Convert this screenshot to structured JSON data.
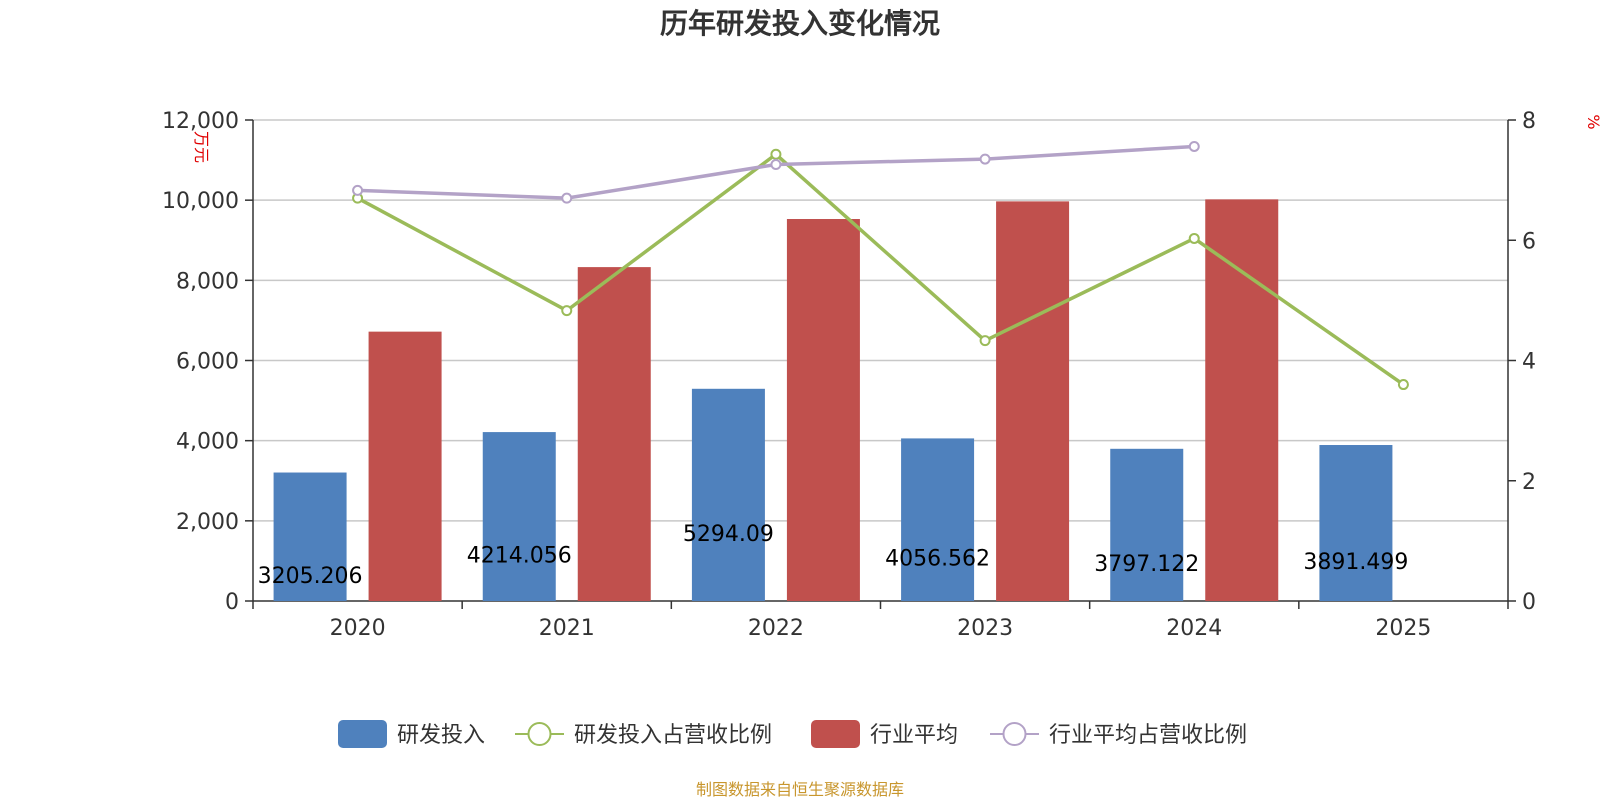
{
  "chart_data": {
    "type": "bar",
    "title": "历年研发投入变化情况",
    "categories": [
      "2020",
      "2021",
      "2022",
      "2023",
      "2024",
      "2025"
    ],
    "y_left": {
      "unit": "万元",
      "range": [
        0,
        12000
      ],
      "ticks": [
        "0",
        "2,000",
        "4,000",
        "6,000",
        "8,000",
        "10,000",
        "12,000"
      ],
      "tick_values": [
        0,
        2000,
        4000,
        6000,
        8000,
        10000,
        12000
      ]
    },
    "y_right": {
      "unit": "%",
      "range": [
        0,
        8
      ],
      "ticks": [
        "0",
        "2",
        "4",
        "6",
        "8"
      ],
      "tick_values": [
        0,
        2,
        4,
        6,
        8
      ]
    },
    "grid": true,
    "legend_position": "bottom",
    "series": [
      {
        "name": "研发投入",
        "kind": "bar",
        "axis": "left",
        "color": "#4f81bd",
        "values": [
          3205.206,
          4214.056,
          5294.09,
          4056.562,
          3797.122,
          3891.499
        ],
        "labels": [
          "3205.206",
          "4214.056",
          "5294.09",
          "4056.562",
          "3797.122",
          "3891.499"
        ]
      },
      {
        "name": "研发投入占营收比例",
        "kind": "line",
        "axis": "right",
        "color": "#9bbb59",
        "values": [
          6.7,
          4.83,
          7.43,
          4.33,
          6.03,
          3.6
        ]
      },
      {
        "name": "行业平均",
        "kind": "bar",
        "axis": "left",
        "color": "#c0504d",
        "values": [
          6720,
          8330,
          9530,
          9970,
          10020,
          null
        ]
      },
      {
        "name": "行业平均占营收比例",
        "kind": "line",
        "axis": "right",
        "color": "#b3a2c7",
        "values": [
          6.83,
          6.7,
          7.26,
          7.35,
          7.56,
          null
        ]
      }
    ],
    "source_note": "制图数据来自恒生聚源数据库"
  }
}
